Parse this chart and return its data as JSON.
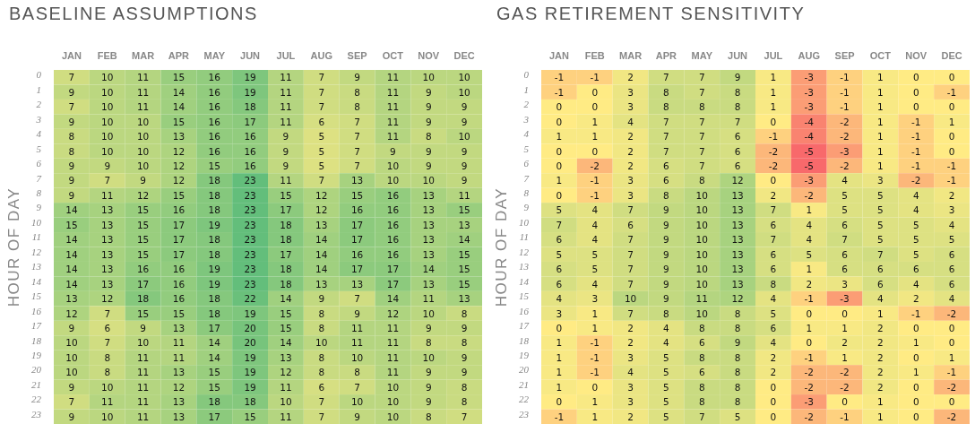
{
  "chart_data": [
    {
      "type": "heatmap",
      "title": "BASELINE ASSUMPTIONS",
      "ylabel": "HOUR OF DAY",
      "data_labels": true,
      "categories": [
        "JAN",
        "FEB",
        "MAR",
        "APR",
        "MAY",
        "JUN",
        "JUL",
        "AUG",
        "SEP",
        "OCT",
        "NOV",
        "DEC"
      ],
      "y_categories": [
        "0",
        "1",
        "2",
        "3",
        "4",
        "5",
        "6",
        "7",
        "8",
        "9",
        "10",
        "11",
        "12",
        "13",
        "14",
        "15",
        "16",
        "17",
        "18",
        "19",
        "20",
        "21",
        "22",
        "23"
      ],
      "cells": [
        [
          7,
          10,
          11,
          15,
          16,
          19,
          11,
          7,
          9,
          11,
          10,
          10
        ],
        [
          9,
          10,
          11,
          14,
          16,
          19,
          11,
          7,
          8,
          11,
          9,
          10
        ],
        [
          7,
          10,
          11,
          14,
          16,
          18,
          11,
          7,
          8,
          11,
          9,
          9
        ],
        [
          9,
          10,
          10,
          15,
          16,
          17,
          11,
          6,
          7,
          11,
          9,
          9
        ],
        [
          8,
          10,
          10,
          13,
          16,
          16,
          9,
          5,
          7,
          11,
          8,
          10
        ],
        [
          8,
          10,
          10,
          12,
          16,
          16,
          9,
          5,
          7,
          9,
          9,
          9
        ],
        [
          9,
          9,
          10,
          12,
          15,
          16,
          9,
          5,
          7,
          10,
          9,
          9
        ],
        [
          9,
          7,
          9,
          12,
          18,
          23,
          11,
          7,
          13,
          10,
          10,
          9
        ],
        [
          9,
          11,
          12,
          15,
          18,
          23,
          15,
          12,
          15,
          16,
          13,
          11
        ],
        [
          14,
          13,
          15,
          16,
          18,
          23,
          17,
          12,
          16,
          16,
          13,
          15
        ],
        [
          15,
          13,
          15,
          17,
          19,
          23,
          18,
          13,
          17,
          16,
          13,
          13
        ],
        [
          14,
          13,
          15,
          17,
          18,
          23,
          18,
          14,
          17,
          16,
          13,
          14
        ],
        [
          14,
          13,
          15,
          17,
          18,
          23,
          17,
          14,
          16,
          16,
          13,
          15
        ],
        [
          14,
          13,
          16,
          16,
          19,
          23,
          18,
          14,
          17,
          17,
          14,
          15
        ],
        [
          14,
          13,
          17,
          16,
          19,
          23,
          18,
          13,
          13,
          17,
          13,
          15
        ],
        [
          13,
          12,
          18,
          16,
          18,
          22,
          14,
          9,
          7,
          14,
          11,
          13
        ],
        [
          12,
          7,
          15,
          15,
          18,
          19,
          15,
          8,
          9,
          12,
          10,
          8
        ],
        [
          9,
          6,
          9,
          13,
          17,
          20,
          15,
          8,
          11,
          11,
          9,
          9
        ],
        [
          10,
          7,
          10,
          11,
          14,
          20,
          14,
          10,
          11,
          11,
          8,
          8
        ],
        [
          10,
          8,
          11,
          11,
          14,
          19,
          13,
          8,
          10,
          11,
          10,
          9
        ],
        [
          10,
          8,
          11,
          13,
          15,
          19,
          12,
          8,
          8,
          11,
          9,
          9
        ],
        [
          9,
          10,
          11,
          12,
          15,
          19,
          11,
          6,
          7,
          10,
          9,
          8
        ],
        [
          7,
          11,
          11,
          13,
          18,
          18,
          10,
          7,
          10,
          10,
          9,
          8
        ],
        [
          9,
          10,
          11,
          13,
          17,
          15,
          11,
          7,
          9,
          10,
          8,
          7
        ]
      ]
    },
    {
      "type": "heatmap",
      "title": "GAS RETIREMENT SENSITIVITY",
      "ylabel": "HOUR OF DAY",
      "data_labels": true,
      "categories": [
        "JAN",
        "FEB",
        "MAR",
        "APR",
        "MAY",
        "JUN",
        "JUL",
        "AUG",
        "SEP",
        "OCT",
        "NOV",
        "DEC"
      ],
      "y_categories": [
        "0",
        "1",
        "2",
        "3",
        "4",
        "5",
        "6",
        "7",
        "8",
        "9",
        "10",
        "11",
        "12",
        "13",
        "14",
        "15",
        "16",
        "17",
        "18",
        "19",
        "20",
        "21",
        "22",
        "23"
      ],
      "cells": [
        [
          -1,
          -1,
          2,
          7,
          7,
          9,
          1,
          -3,
          -1,
          1,
          0,
          0
        ],
        [
          -1,
          0,
          3,
          8,
          7,
          8,
          1,
          -3,
          -1,
          1,
          0,
          -1
        ],
        [
          0,
          0,
          3,
          8,
          8,
          8,
          1,
          -3,
          -1,
          1,
          0,
          0
        ],
        [
          0,
          1,
          4,
          7,
          7,
          7,
          0,
          -4,
          -2,
          1,
          -1,
          1
        ],
        [
          1,
          1,
          2,
          7,
          7,
          6,
          -1,
          -4,
          -2,
          1,
          -1,
          0
        ],
        [
          0,
          0,
          2,
          7,
          7,
          6,
          -2,
          -5,
          -3,
          1,
          -1,
          0
        ],
        [
          0,
          -2,
          2,
          6,
          7,
          6,
          -2,
          -5,
          -2,
          1,
          -1,
          -1
        ],
        [
          1,
          -1,
          3,
          6,
          8,
          12,
          0,
          -3,
          4,
          3,
          -2,
          -1
        ],
        [
          0,
          -1,
          3,
          8,
          10,
          13,
          2,
          -2,
          5,
          5,
          4,
          2
        ],
        [
          5,
          4,
          7,
          9,
          10,
          13,
          7,
          1,
          5,
          5,
          4,
          3
        ],
        [
          7,
          4,
          6,
          9,
          10,
          13,
          6,
          4,
          6,
          5,
          5,
          4
        ],
        [
          6,
          4,
          7,
          9,
          10,
          13,
          7,
          4,
          7,
          5,
          5,
          5
        ],
        [
          5,
          5,
          7,
          9,
          10,
          13,
          6,
          5,
          6,
          7,
          5,
          6
        ],
        [
          6,
          5,
          7,
          9,
          10,
          13,
          6,
          1,
          6,
          6,
          6,
          6
        ],
        [
          6,
          4,
          7,
          9,
          10,
          13,
          8,
          2,
          3,
          6,
          4,
          6
        ],
        [
          4,
          3,
          10,
          9,
          11,
          12,
          4,
          -1,
          -3,
          4,
          2,
          4
        ],
        [
          3,
          1,
          7,
          8,
          10,
          8,
          5,
          0,
          0,
          1,
          -1,
          -2
        ],
        [
          0,
          1,
          2,
          4,
          8,
          8,
          6,
          1,
          1,
          2,
          0,
          0
        ],
        [
          1,
          -1,
          2,
          4,
          6,
          9,
          4,
          0,
          2,
          2,
          1,
          0
        ],
        [
          1,
          -1,
          3,
          5,
          8,
          8,
          2,
          -1,
          1,
          2,
          0,
          1
        ],
        [
          1,
          -1,
          4,
          5,
          6,
          8,
          2,
          -2,
          -2,
          2,
          1,
          -1
        ],
        [
          1,
          0,
          3,
          5,
          8,
          8,
          0,
          -2,
          -2,
          2,
          0,
          -2
        ],
        [
          0,
          1,
          3,
          5,
          8,
          8,
          0,
          -3,
          0,
          1,
          0,
          0
        ],
        [
          -1,
          1,
          2,
          5,
          7,
          5,
          0,
          -2,
          -1,
          1,
          0,
          -2
        ]
      ]
    }
  ]
}
